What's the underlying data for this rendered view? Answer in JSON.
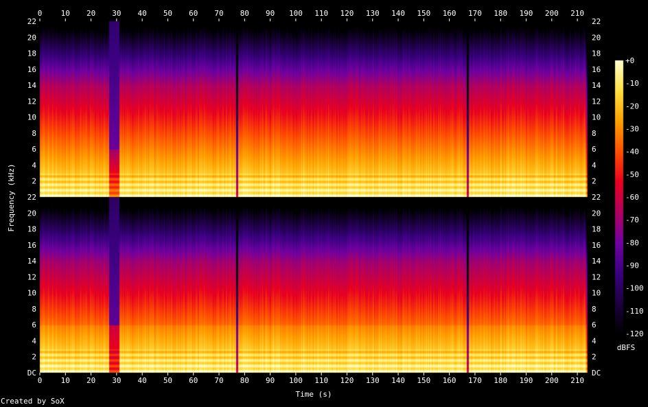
{
  "chart_data": {
    "type": "heatmap",
    "title": "",
    "xlabel": "Time (s)",
    "ylabel": "Frequency (kHz)",
    "xlim": [
      0,
      214
    ],
    "ylim": [
      0,
      22
    ],
    "x_ticks": [
      "0",
      "10",
      "20",
      "30",
      "40",
      "50",
      "60",
      "70",
      "80",
      "90",
      "100",
      "110",
      "120",
      "130",
      "140",
      "150",
      "160",
      "170",
      "180",
      "190",
      "200",
      "210"
    ],
    "y_ticks": [
      "2",
      "4",
      "6",
      "8",
      "10",
      "12",
      "14",
      "16",
      "18",
      "20",
      "22"
    ],
    "y_zero_label": "DC",
    "channels": 2,
    "colorbar": {
      "label": "dBFS",
      "range": [
        -120,
        0
      ],
      "ticks": [
        "+0",
        "-10",
        "-20",
        "-30",
        "-40",
        "-50",
        "-60",
        "-70",
        "-80",
        "-90",
        "-100",
        "-110",
        "-120"
      ],
      "stops": [
        "#000000",
        "#1c0040",
        "#3a0080",
        "#7000a0",
        "#b00060",
        "#e80020",
        "#ff5000",
        "#ffa000",
        "#ffe040",
        "#ffffd0"
      ]
    },
    "events": {
      "quiet_section_s": [
        27,
        31
      ],
      "track_breaks_s": [
        77,
        167
      ],
      "end_fade_s": 213
    }
  },
  "footer": {
    "credit": "Created by SoX"
  }
}
